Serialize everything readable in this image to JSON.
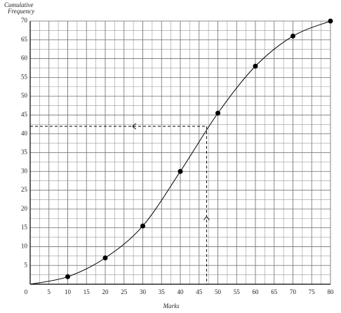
{
  "chart_data": {
    "type": "line",
    "y_label": "Cumulative Frequency",
    "x_label": "Marks",
    "x": [
      10,
      20,
      30,
      40,
      50,
      60,
      70,
      80
    ],
    "values": [
      2,
      7,
      15.5,
      30,
      45.5,
      58,
      66,
      70
    ],
    "color": "#000000",
    "xlim": [
      0,
      80
    ],
    "ylim": [
      0,
      70
    ],
    "xticks": [
      0,
      5,
      10,
      15,
      20,
      25,
      30,
      35,
      40,
      45,
      50,
      55,
      60,
      65,
      70,
      75,
      80
    ],
    "yticks": [
      5,
      10,
      15,
      20,
      25,
      30,
      35,
      40,
      45,
      50,
      55,
      60,
      65,
      70
    ],
    "minor_grid_step": 2.5,
    "grid": true,
    "guide": {
      "x": 47,
      "y": 42
    }
  }
}
